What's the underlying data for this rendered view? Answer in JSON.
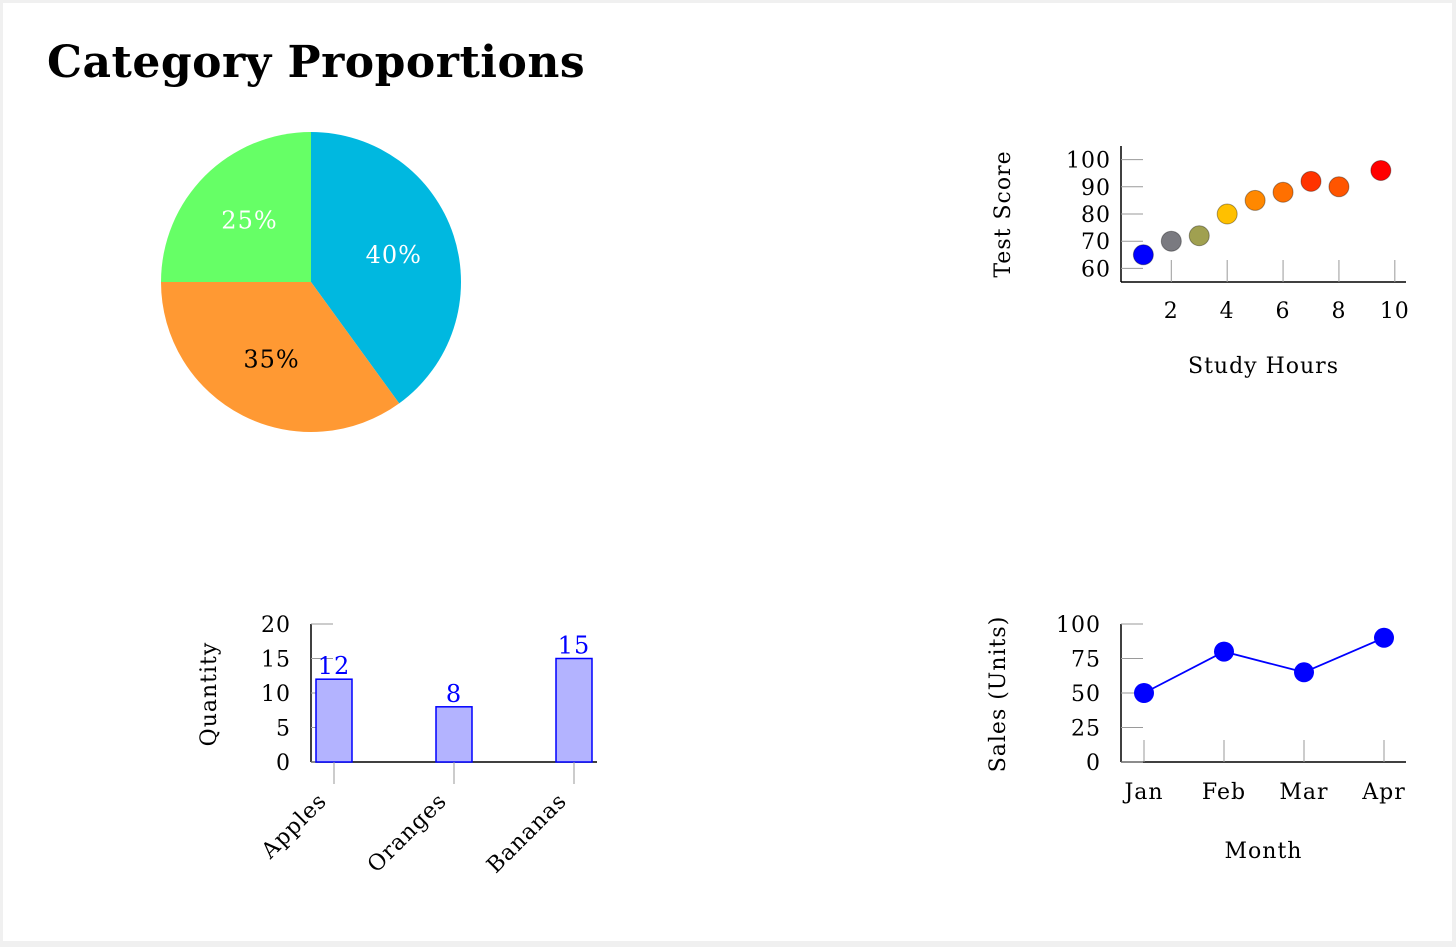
{
  "page": {
    "title": "Category Proportions"
  },
  "colors": {
    "axis": "#000000",
    "tick": "#9a9a9a",
    "bar_fill": "#b3b3ff",
    "bar_stroke": "#0000ff",
    "bar_label": "#0000ff",
    "line": "#0000ff",
    "marker": "#0000ff"
  },
  "chart_data": [
    {
      "id": "pie",
      "type": "pie",
      "slices": [
        {
          "value": 40,
          "label": "40%",
          "color": "#00b8e0",
          "text_color": "#ffffff"
        },
        {
          "value": 35,
          "label": "35%",
          "color": "#ff9933",
          "text_color": "#000000"
        },
        {
          "value": 25,
          "label": "25%",
          "color": "#66ff66",
          "text_color": "#ffffff"
        }
      ]
    },
    {
      "id": "scatter",
      "type": "scatter",
      "xlabel": "Study Hours",
      "ylabel": "Test Score",
      "xlim": [
        0.2,
        10.4
      ],
      "ylim": [
        55,
        105
      ],
      "xticks": [
        2,
        4,
        6,
        8,
        10
      ],
      "yticks": [
        60,
        70,
        80,
        90,
        100
      ],
      "points": [
        {
          "x": 1,
          "y": 65,
          "color": "#0000ff"
        },
        {
          "x": 2,
          "y": 70,
          "color": "#7a7a80"
        },
        {
          "x": 3,
          "y": 72,
          "color": "#a0a050"
        },
        {
          "x": 4,
          "y": 80,
          "color": "#ffc000"
        },
        {
          "x": 5,
          "y": 85,
          "color": "#ff8800"
        },
        {
          "x": 6,
          "y": 88,
          "color": "#ff7000"
        },
        {
          "x": 7,
          "y": 92,
          "color": "#ff3300"
        },
        {
          "x": 8,
          "y": 90,
          "color": "#ff5500"
        },
        {
          "x": 9.5,
          "y": 96,
          "color": "#ff0000"
        }
      ]
    },
    {
      "id": "bar",
      "type": "bar",
      "ylabel": "Quantity",
      "categories": [
        "Apples",
        "Oranges",
        "Bananas"
      ],
      "values": [
        12,
        8,
        15
      ],
      "ylim": [
        0,
        20
      ],
      "yticks": [
        0,
        5,
        10,
        15,
        20
      ]
    },
    {
      "id": "line",
      "type": "line",
      "xlabel": "Month",
      "ylabel": "Sales (Units)",
      "categories": [
        "Jan",
        "Feb",
        "Mar",
        "Apr"
      ],
      "values": [
        50,
        80,
        65,
        90
      ],
      "ylim": [
        0,
        100
      ],
      "yticks": [
        0,
        25,
        50,
        75,
        100
      ]
    }
  ]
}
